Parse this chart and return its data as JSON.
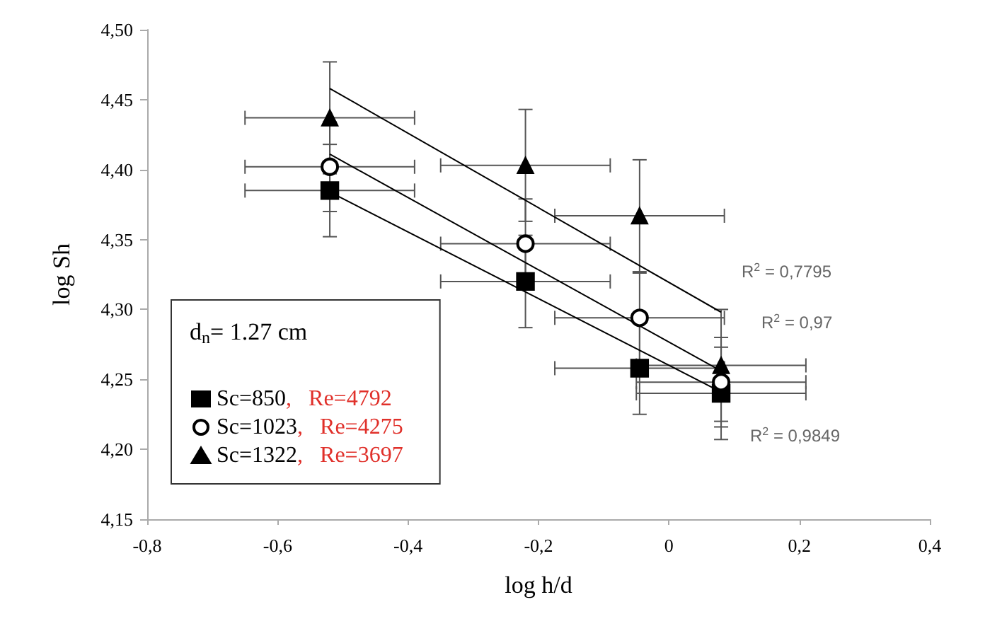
{
  "chart_data": {
    "type": "scatter",
    "xlabel": "log h/d",
    "ylabel": "log Sh",
    "legend_title": "d$_{n}$= 1.27 cm",
    "legend": "bottom left",
    "grid": false,
    "xlim": [
      -0.8,
      0.4
    ],
    "xticks": [
      {
        "value": -0.8,
        "label": "-0,8"
      },
      {
        "value": -0.6,
        "label": "-0,6"
      },
      {
        "value": -0.4,
        "label": "-0,4"
      },
      {
        "value": -0.2,
        "label": "-0,2"
      },
      0,
      {
        "value": 0.2,
        "label": "0,2"
      },
      {
        "value": 0.4,
        "label": "0,4"
      }
    ],
    "ylim": [
      4.15,
      4.5
    ],
    "yticks": [
      {
        "value": 4.15,
        "label": "4,15"
      },
      {
        "value": 4.2,
        "label": "4,20"
      },
      {
        "value": 4.25,
        "label": "4,25"
      },
      {
        "value": 4.3,
        "label": "4,30"
      },
      {
        "value": 4.35,
        "label": "4,35"
      },
      {
        "value": 4.4,
        "label": "4,40"
      },
      {
        "value": 4.45,
        "label": "4,45"
      },
      {
        "value": 4.5,
        "label": "4,50"
      }
    ],
    "series": [
      {
        "name": "Sc=850, Re=4792",
        "color": "#000000",
        "marker": "square",
        "x": [
          -0.52,
          -0.22,
          -0.045,
          0.08
        ],
        "values": [
          4.385,
          4.32,
          4.258,
          4.24
        ],
        "errors": [
          0.033,
          0.033,
          0.033,
          0.033
        ],
        "xerrors": [
          0.13,
          0.13,
          0.13,
          0.13
        ]
      },
      {
        "name": "Sc=1023, Re=4275",
        "color": "#000000",
        "marker": "circle",
        "x": [
          -0.52,
          -0.22,
          -0.045,
          0.08
        ],
        "values": [
          4.402,
          4.347,
          4.294,
          4.248
        ],
        "errors": [
          0.032,
          0.032,
          0.032,
          0.032
        ],
        "xerrors": [
          0.13,
          0.13,
          0.13,
          0.13
        ]
      },
      {
        "name": "Sc=1322, Re=3697",
        "color": "#000000",
        "marker": "triangle",
        "x": [
          -0.52,
          -0.22,
          -0.045,
          0.08
        ],
        "values": [
          4.437,
          4.403,
          4.367,
          4.26
        ],
        "errors": [
          0.04,
          0.04,
          0.04,
          0.04
        ],
        "xerrors": [
          0.13,
          0.13,
          0.13,
          0.13
        ]
      },
      {
        "type": "line",
        "color": "#000000",
        "marker": "none",
        "x": [
          -0.52,
          0.08
        ],
        "values": [
          4.384,
          4.241
        ]
      },
      {
        "type": "line",
        "color": "#000000",
        "marker": "none",
        "x": [
          -0.52,
          0.08
        ],
        "values": [
          4.411,
          4.256
        ]
      },
      {
        "type": "line",
        "color": "#000000",
        "marker": "none",
        "x": [
          -0.52,
          0.08
        ],
        "values": [
          4.458,
          4.298
        ]
      }
    ],
    "annotations": [
      "R$^{2}$ = 0,7795",
      "R$^{2}$ = 0,97",
      "R$^{2}$ = 0,9849"
    ]
  }
}
